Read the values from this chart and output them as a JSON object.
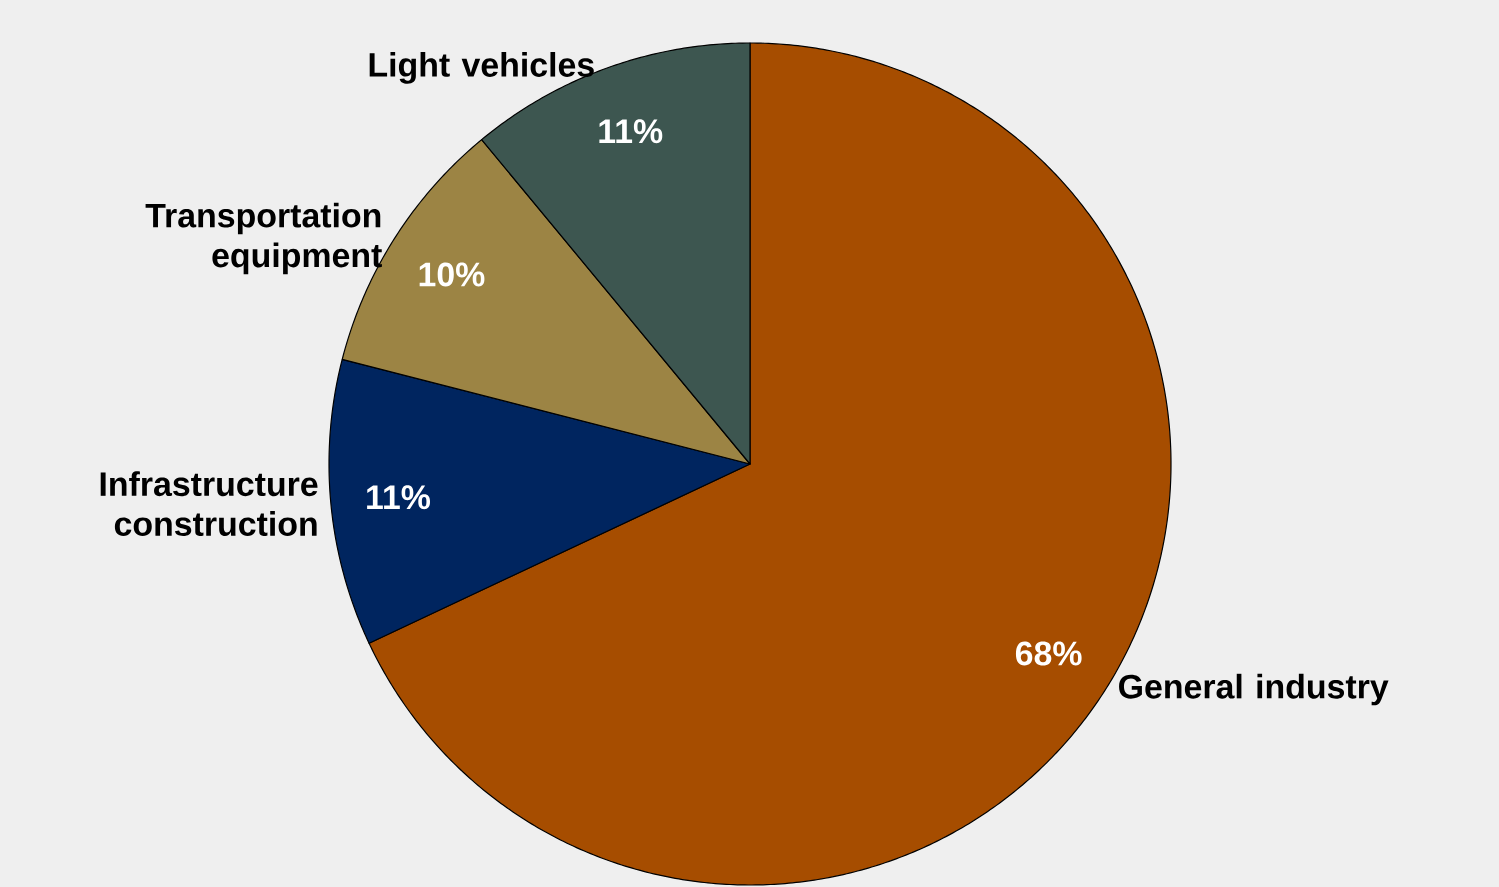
{
  "chart_data": {
    "type": "pie",
    "categories": [
      "General industry",
      "Infrastructure construction",
      "Transportation equipment",
      "Light vehicles"
    ],
    "values": [
      68,
      11,
      10,
      11
    ],
    "value_labels": [
      "68%",
      "11%",
      "10%",
      "11%"
    ],
    "colors": [
      "#a64d00",
      "#00255f",
      "#9c8444",
      "#3d5650"
    ]
  }
}
